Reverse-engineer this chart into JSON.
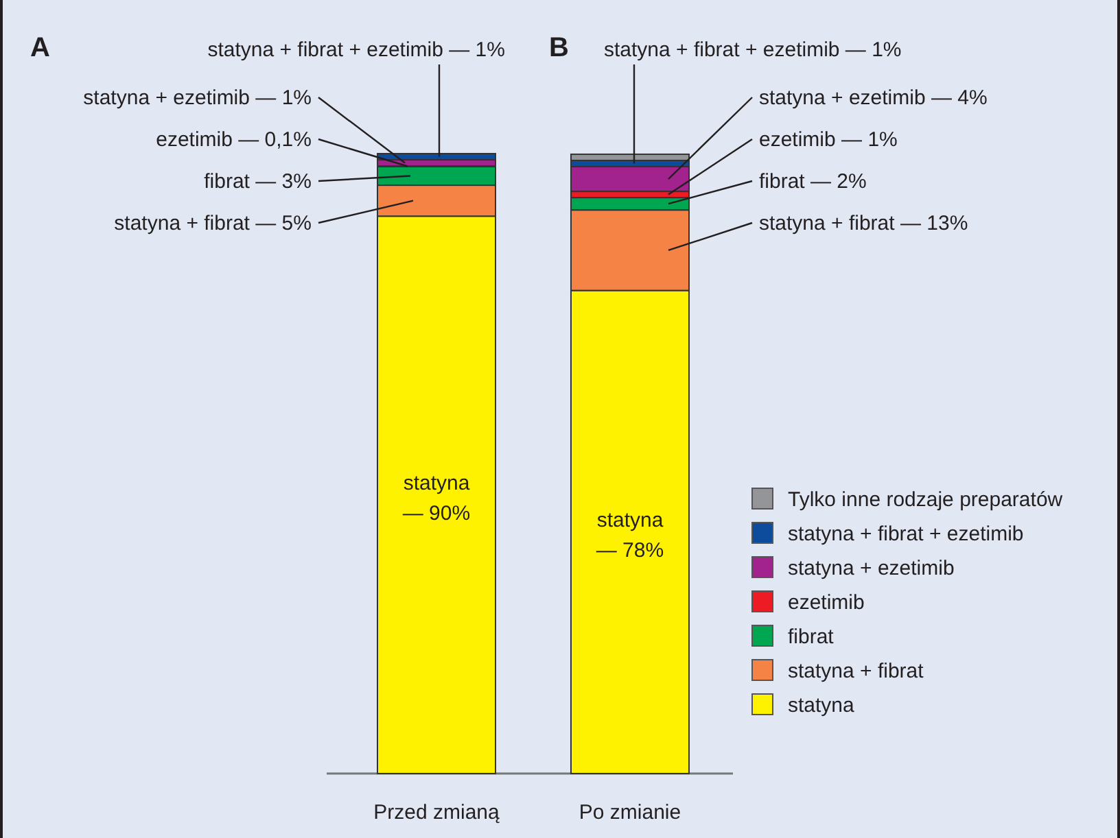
{
  "chart_data": {
    "type": "bar",
    "stacked": true,
    "categories": [
      "Przed zmianą",
      "Po zmianie"
    ],
    "legend": "right",
    "annotations": [
      "A",
      "B"
    ],
    "series": [
      {
        "name": "statyna",
        "color": "#fff200",
        "values": [
          90,
          78
        ],
        "value_labels": [
          "— 90%",
          "— 78%"
        ]
      },
      {
        "name": "statyna + fibrat",
        "color": "#f58345",
        "values": [
          5,
          13
        ],
        "value_labels": [
          "— 5%",
          "— 13%"
        ]
      },
      {
        "name": "fibrat",
        "color": "#00a650",
        "values": [
          3,
          2
        ],
        "value_labels": [
          "— 3%",
          "— 2%"
        ]
      },
      {
        "name": "ezetimib",
        "color": "#ed1c24",
        "values": [
          0.1,
          1
        ],
        "value_labels": [
          "— 0,1%",
          "— 1%"
        ]
      },
      {
        "name": "statyna + ezetimib",
        "color": "#a3238e",
        "values": [
          1,
          4
        ],
        "value_labels": [
          "— 1%",
          "— 4%"
        ]
      },
      {
        "name": "statyna + fibrat + ezetimib",
        "color": "#0d4c9c",
        "values": [
          1,
          1
        ],
        "value_labels": [
          "— 1%",
          "— 1%"
        ]
      },
      {
        "name": "Tylko inne rodzaje preparatów",
        "color": "#939598",
        "values": [
          null,
          1
        ],
        "value_labels": [
          null,
          null
        ]
      }
    ]
  }
}
